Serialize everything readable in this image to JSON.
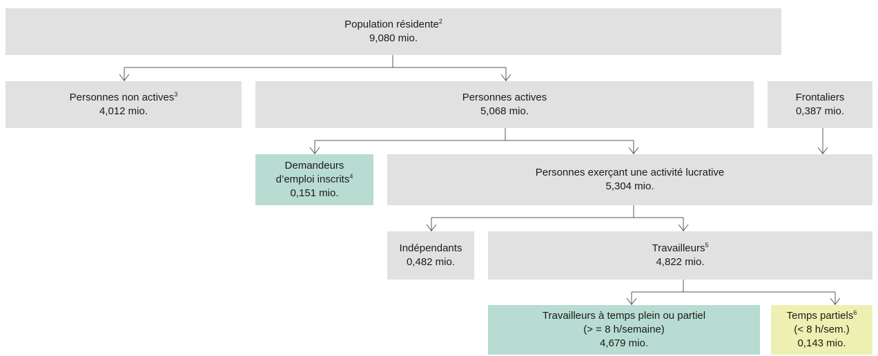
{
  "nodes": [
    {
      "lines": [
        {
          "text": "Population résidente",
          "note": "2"
        }
      ],
      "value": "9,080 mio."
    },
    {
      "lines": [
        {
          "text": "Personnes non actives",
          "note": "3"
        }
      ],
      "value": "4,012 mio."
    },
    {
      "lines": [
        {
          "text": "Personnes actives"
        }
      ],
      "value": "5,068 mio."
    },
    {
      "lines": [
        {
          "text": "Frontaliers"
        }
      ],
      "value": "0,387 mio."
    },
    {
      "lines": [
        {
          "text": "Demandeurs"
        },
        {
          "text": "d’emploi inscrits",
          "note": "4"
        }
      ],
      "value": "0,151 mio."
    },
    {
      "lines": [
        {
          "text": "Personnes exerçant une activité lucrative"
        }
      ],
      "value": "5,304 mio."
    },
    {
      "lines": [
        {
          "text": "Indépendants"
        }
      ],
      "value": "0,482 mio."
    },
    {
      "lines": [
        {
          "text": "Travailleurs",
          "note": "5"
        }
      ],
      "value": "4,822 mio."
    },
    {
      "lines": [
        {
          "text": "Travailleurs à temps plein ou partiel"
        },
        {
          "text": "(> = 8 h/semaine)"
        }
      ],
      "value": "4,679 mio."
    },
    {
      "lines": [
        {
          "text": "Temps partiels",
          "note": "6"
        },
        {
          "text": "(< 8 h/sem.)"
        }
      ],
      "value": "0,143 mio."
    }
  ]
}
